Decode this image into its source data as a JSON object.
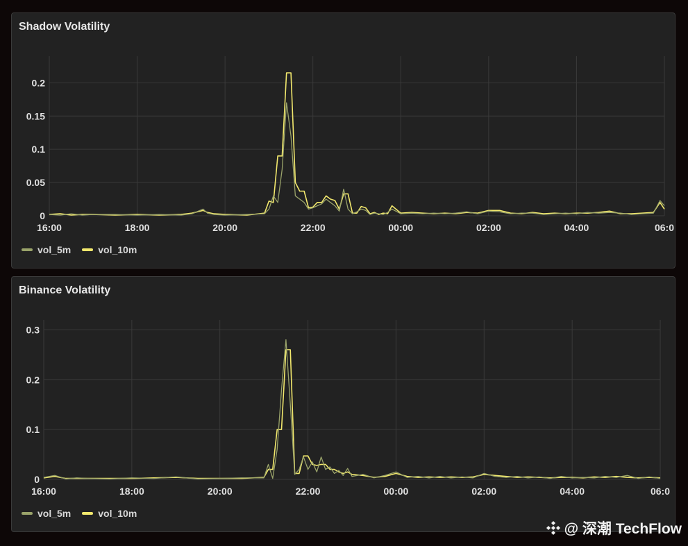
{
  "colors": {
    "vol_5m": "#9aa36a",
    "vol_10m": "#f2e86d",
    "grid": "#3a3a3a",
    "tick_text": "#e0e0e0"
  },
  "watermark": {
    "icon": "techflow-logo-icon",
    "text": "@ 深潮 TechFlow"
  },
  "chart_data": [
    {
      "type": "line",
      "title": "Shadow Volatility",
      "x_unit": "hours since 16:00",
      "xlim": [
        0,
        14
      ],
      "ylim": [
        0,
        0.24
      ],
      "x_ticks": [
        {
          "v": 0,
          "label": "16:00"
        },
        {
          "v": 2,
          "label": "18:00"
        },
        {
          "v": 4,
          "label": "20:00"
        },
        {
          "v": 6,
          "label": "22:00"
        },
        {
          "v": 8,
          "label": "00:00"
        },
        {
          "v": 10,
          "label": "02:00"
        },
        {
          "v": 12,
          "label": "04:00"
        },
        {
          "v": 14,
          "label": "06:0"
        }
      ],
      "y_ticks": [
        {
          "v": 0,
          "label": "0"
        },
        {
          "v": 0.05,
          "label": "0.05"
        },
        {
          "v": 0.1,
          "label": "0.1"
        },
        {
          "v": 0.15,
          "label": "0.15"
        },
        {
          "v": 0.2,
          "label": "0.2"
        }
      ],
      "legend": [
        "vol_5m",
        "vol_10m"
      ],
      "series": [
        {
          "name": "vol_10m",
          "x": [
            0,
            0.25,
            0.5,
            0.75,
            1,
            1.5,
            2,
            2.5,
            3,
            3.25,
            3.5,
            3.6,
            3.75,
            4,
            4.5,
            4.9,
            5.0,
            5.1,
            5.2,
            5.3,
            5.4,
            5.5,
            5.6,
            5.7,
            5.8,
            5.9,
            6.0,
            6.1,
            6.2,
            6.3,
            6.4,
            6.5,
            6.6,
            6.7,
            6.8,
            6.9,
            7.0,
            7.1,
            7.2,
            7.3,
            7.4,
            7.5,
            7.6,
            7.7,
            7.8,
            8.0,
            8.25,
            8.5,
            8.75,
            9.0,
            9.25,
            9.5,
            9.75,
            10.0,
            10.25,
            10.5,
            10.75,
            11.0,
            11.25,
            11.5,
            11.75,
            12.0,
            12.25,
            12.5,
            12.75,
            13.0,
            13.25,
            13.5,
            13.75,
            13.9,
            14.0
          ],
          "y": [
            0.002,
            0.003,
            0.001,
            0.002,
            0.002,
            0.001,
            0.002,
            0.001,
            0.002,
            0.004,
            0.008,
            0.005,
            0.003,
            0.002,
            0.001,
            0.004,
            0.022,
            0.02,
            0.09,
            0.09,
            0.215,
            0.215,
            0.05,
            0.037,
            0.037,
            0.012,
            0.013,
            0.02,
            0.02,
            0.03,
            0.025,
            0.023,
            0.01,
            0.033,
            0.033,
            0.004,
            0.004,
            0.014,
            0.012,
            0.003,
            0.005,
            0.002,
            0.004,
            0.003,
            0.015,
            0.004,
            0.005,
            0.004,
            0.003,
            0.004,
            0.003,
            0.005,
            0.004,
            0.008,
            0.008,
            0.004,
            0.003,
            0.005,
            0.003,
            0.004,
            0.003,
            0.004,
            0.004,
            0.005,
            0.007,
            0.003,
            0.003,
            0.004,
            0.005,
            0.02,
            0.01
          ]
        },
        {
          "name": "vol_5m",
          "x": [
            0,
            0.25,
            0.5,
            0.75,
            1,
            1.5,
            2,
            2.5,
            3,
            3.25,
            3.5,
            3.6,
            3.75,
            4,
            4.5,
            4.9,
            5.0,
            5.1,
            5.2,
            5.3,
            5.4,
            5.5,
            5.6,
            5.7,
            5.8,
            5.9,
            6.0,
            6.1,
            6.2,
            6.3,
            6.4,
            6.5,
            6.6,
            6.7,
            6.8,
            6.9,
            7.0,
            7.1,
            7.2,
            7.3,
            7.4,
            7.5,
            7.6,
            7.7,
            7.8,
            8.0,
            8.25,
            8.5,
            8.75,
            9.0,
            9.25,
            9.5,
            9.75,
            10.0,
            10.25,
            10.5,
            10.75,
            11.0,
            11.25,
            11.5,
            11.75,
            12.0,
            12.25,
            12.5,
            12.75,
            13.0,
            13.25,
            13.5,
            13.75,
            13.9,
            14.0
          ],
          "y": [
            0.002,
            0.001,
            0.003,
            0.001,
            0.002,
            0.002,
            0.001,
            0.002,
            0.001,
            0.003,
            0.01,
            0.004,
            0.002,
            0.001,
            0.002,
            0.003,
            0.01,
            0.03,
            0.02,
            0.07,
            0.17,
            0.12,
            0.03,
            0.025,
            0.02,
            0.01,
            0.012,
            0.015,
            0.018,
            0.025,
            0.02,
            0.015,
            0.007,
            0.04,
            0.01,
            0.003,
            0.006,
            0.01,
            0.008,
            0.002,
            0.004,
            0.003,
            0.002,
            0.005,
            0.01,
            0.003,
            0.004,
            0.003,
            0.004,
            0.003,
            0.004,
            0.006,
            0.003,
            0.007,
            0.006,
            0.003,
            0.004,
            0.004,
            0.002,
            0.003,
            0.004,
            0.003,
            0.005,
            0.004,
            0.005,
            0.004,
            0.002,
            0.003,
            0.004,
            0.023,
            0.015
          ]
        }
      ]
    },
    {
      "type": "line",
      "title": "Binance Volatility",
      "x_unit": "hours since 16:00",
      "xlim": [
        0,
        14
      ],
      "ylim": [
        0,
        0.32
      ],
      "x_ticks": [
        {
          "v": 0,
          "label": "16:00"
        },
        {
          "v": 2,
          "label": "18:00"
        },
        {
          "v": 4,
          "label": "20:00"
        },
        {
          "v": 6,
          "label": "22:00"
        },
        {
          "v": 8,
          "label": "00:00"
        },
        {
          "v": 10,
          "label": "02:00"
        },
        {
          "v": 12,
          "label": "04:00"
        },
        {
          "v": 14,
          "label": "06:0"
        }
      ],
      "y_ticks": [
        {
          "v": 0,
          "label": "0"
        },
        {
          "v": 0.1,
          "label": "0.1"
        },
        {
          "v": 0.2,
          "label": "0.2"
        },
        {
          "v": 0.3,
          "label": "0.3"
        }
      ],
      "legend": [
        "vol_5m",
        "vol_10m"
      ],
      "series": [
        {
          "name": "vol_10m",
          "x": [
            0,
            0.25,
            0.5,
            0.75,
            1,
            1.5,
            2,
            2.5,
            3,
            3.5,
            4,
            4.5,
            5.0,
            5.1,
            5.2,
            5.3,
            5.4,
            5.5,
            5.6,
            5.7,
            5.8,
            5.9,
            6.0,
            6.1,
            6.2,
            6.3,
            6.4,
            6.5,
            6.6,
            6.7,
            6.8,
            6.9,
            7.0,
            7.25,
            7.5,
            7.75,
            8.0,
            8.25,
            8.5,
            8.75,
            9.0,
            9.25,
            9.5,
            9.75,
            10.0,
            10.25,
            10.5,
            10.75,
            11.0,
            11.25,
            11.5,
            11.75,
            12.0,
            12.25,
            12.5,
            12.75,
            13.0,
            13.25,
            13.5,
            13.75,
            14.0
          ],
          "y": [
            0.003,
            0.006,
            0.002,
            0.002,
            0.002,
            0.002,
            0.002,
            0.003,
            0.004,
            0.002,
            0.002,
            0.002,
            0.004,
            0.02,
            0.02,
            0.1,
            0.1,
            0.26,
            0.26,
            0.012,
            0.012,
            0.047,
            0.047,
            0.03,
            0.028,
            0.03,
            0.03,
            0.02,
            0.02,
            0.015,
            0.012,
            0.015,
            0.01,
            0.008,
            0.004,
            0.006,
            0.012,
            0.006,
            0.004,
            0.005,
            0.004,
            0.005,
            0.004,
            0.005,
            0.01,
            0.008,
            0.006,
            0.004,
            0.005,
            0.004,
            0.003,
            0.004,
            0.004,
            0.003,
            0.005,
            0.004,
            0.006,
            0.004,
            0.003,
            0.004,
            0.003
          ]
        },
        {
          "name": "vol_5m",
          "x": [
            0,
            0.25,
            0.5,
            0.75,
            1,
            1.5,
            2,
            2.5,
            3,
            3.5,
            4,
            4.5,
            5.0,
            5.1,
            5.2,
            5.3,
            5.4,
            5.5,
            5.6,
            5.7,
            5.8,
            5.9,
            6.0,
            6.1,
            6.2,
            6.3,
            6.4,
            6.5,
            6.6,
            6.7,
            6.8,
            6.9,
            7.0,
            7.25,
            7.5,
            7.75,
            8.0,
            8.25,
            8.5,
            8.75,
            9.0,
            9.25,
            9.5,
            9.75,
            10.0,
            10.25,
            10.5,
            10.75,
            11.0,
            11.25,
            11.5,
            11.75,
            12.0,
            12.25,
            12.5,
            12.75,
            13.0,
            13.25,
            13.5,
            13.75,
            14.0
          ],
          "y": [
            0.004,
            0.008,
            0.001,
            0.003,
            0.002,
            0.001,
            0.003,
            0.002,
            0.005,
            0.001,
            0.002,
            0.003,
            0.003,
            0.03,
            0.002,
            0.06,
            0.18,
            0.28,
            0.15,
            0.01,
            0.02,
            0.045,
            0.02,
            0.035,
            0.015,
            0.045,
            0.02,
            0.025,
            0.012,
            0.018,
            0.008,
            0.022,
            0.006,
            0.01,
            0.003,
            0.008,
            0.015,
            0.004,
            0.006,
            0.003,
            0.006,
            0.003,
            0.005,
            0.003,
            0.012,
            0.006,
            0.004,
            0.006,
            0.003,
            0.005,
            0.002,
            0.006,
            0.003,
            0.004,
            0.003,
            0.006,
            0.004,
            0.008,
            0.002,
            0.005,
            0.002
          ]
        }
      ]
    }
  ]
}
